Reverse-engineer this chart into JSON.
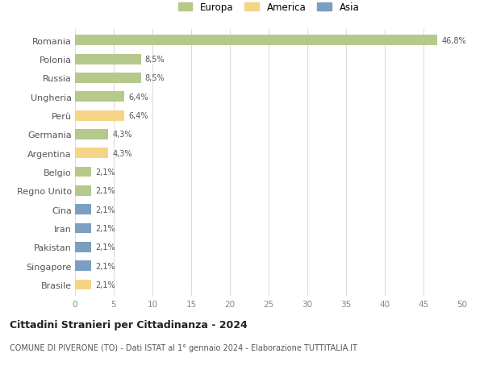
{
  "countries": [
    "Romania",
    "Polonia",
    "Russia",
    "Ungheria",
    "Perù",
    "Germania",
    "Argentina",
    "Belgio",
    "Regno Unito",
    "Cina",
    "Iran",
    "Pakistan",
    "Singapore",
    "Brasile"
  ],
  "values": [
    46.8,
    8.5,
    8.5,
    6.4,
    6.4,
    4.3,
    4.3,
    2.1,
    2.1,
    2.1,
    2.1,
    2.1,
    2.1,
    2.1
  ],
  "labels": [
    "46,8%",
    "8,5%",
    "8,5%",
    "6,4%",
    "6,4%",
    "4,3%",
    "4,3%",
    "2,1%",
    "2,1%",
    "2,1%",
    "2,1%",
    "2,1%",
    "2,1%",
    "2,1%"
  ],
  "continents": [
    "Europa",
    "Europa",
    "Europa",
    "Europa",
    "America",
    "Europa",
    "America",
    "Europa",
    "Europa",
    "Asia",
    "Asia",
    "Asia",
    "Asia",
    "America"
  ],
  "colors": {
    "Europa": "#b5c98a",
    "America": "#f5d485",
    "Asia": "#7a9fc2"
  },
  "legend_labels": [
    "Europa",
    "America",
    "Asia"
  ],
  "legend_colors": [
    "#b5c98a",
    "#f5d485",
    "#7a9fc2"
  ],
  "title": "Cittadini Stranieri per Cittadinanza - 2024",
  "subtitle": "COMUNE DI PIVERONE (TO) - Dati ISTAT al 1° gennaio 2024 - Elaborazione TUTTITALIA.IT",
  "xlim": [
    0,
    50
  ],
  "xticks": [
    0,
    5,
    10,
    15,
    20,
    25,
    30,
    35,
    40,
    45,
    50
  ],
  "background_color": "#ffffff",
  "grid_color": "#dddddd"
}
